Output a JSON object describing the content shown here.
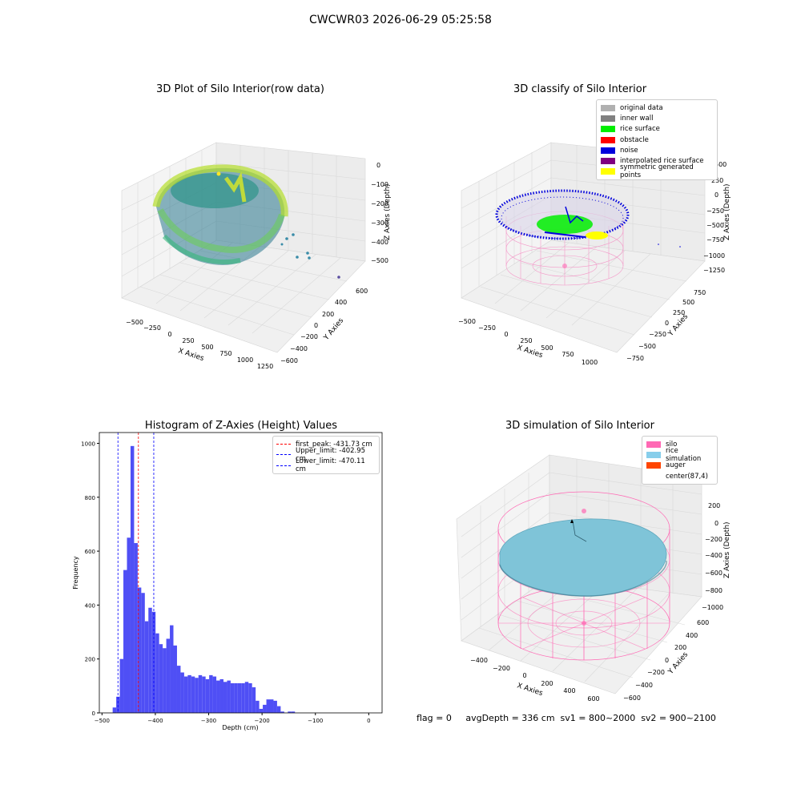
{
  "figure": {
    "suptitle": "CWCWR03 2026-06-29 05:25:58",
    "status_text": "flag = 0     avgDepth = 336 cm  sv1 = 800~2000  sv2 = 900~2100"
  },
  "panels": {
    "raw": {
      "title": "3D Plot of Silo Interior(row data)",
      "xlabel": "X Axies",
      "ylabel": "Y Axies",
      "zlabel": "Z Axies (Depth)",
      "xticks": [
        "−500",
        "−250",
        "0",
        "250",
        "500",
        "750",
        "1000",
        "1250"
      ],
      "yticks": [
        "600",
        "400",
        "200",
        "0",
        "−200",
        "−400",
        "−600"
      ],
      "zticks": [
        "0",
        "−100",
        "−200",
        "−300",
        "−400",
        "−500"
      ]
    },
    "classify": {
      "title": "3D classify of Silo Interior",
      "xlabel": "X Axies",
      "ylabel": "Y Axies",
      "zlabel": "Z Axies (Depth)",
      "xticks": [
        "−500",
        "−250",
        "0",
        "250",
        "500",
        "750",
        "1000"
      ],
      "yticks": [
        "750",
        "500",
        "250",
        "0",
        "−250",
        "−500",
        "−750"
      ],
      "zticks": [
        "500",
        "250",
        "0",
        "−250",
        "−500",
        "−750",
        "−1000",
        "−1250"
      ],
      "legend": [
        {
          "label": "original data",
          "color": "#b0b0b0"
        },
        {
          "label": "inner wall",
          "color": "#808080"
        },
        {
          "label": "rice surface",
          "color": "#00ee00"
        },
        {
          "label": "obstacle",
          "color": "#ff0000"
        },
        {
          "label": "noise",
          "color": "#0000dd"
        },
        {
          "label": "interpolated rice surface",
          "color": "#800080"
        },
        {
          "label": "symmetric generated points",
          "color": "#ffff00"
        }
      ]
    },
    "simulation": {
      "title": "3D simulation of Silo Interior",
      "xlabel": "X Axies",
      "ylabel": "Y Axies",
      "zlabel": "Z Axies (Depth)",
      "xticks": [
        "−400",
        "−200",
        "0",
        "200",
        "400",
        "600"
      ],
      "yticks": [
        "600",
        "400",
        "200",
        "0",
        "−200",
        "−400",
        "−600"
      ],
      "zticks": [
        "200",
        "0",
        "−200",
        "−400",
        "−600",
        "−800",
        "−1000"
      ],
      "legend": [
        {
          "label": "silo",
          "color": "#ff69b4"
        },
        {
          "label": "rice simulation",
          "color": "#87ceeb"
        },
        {
          "label": "auger",
          "color": "#ff4500"
        },
        {
          "label": "center(87,4)",
          "color": ""
        }
      ]
    }
  },
  "chart_data": [
    {
      "type": "bar",
      "title": "Histogram of Z-Axies (Height) Values",
      "xlabel": "Depth (cm)",
      "ylabel": "Frequency",
      "bar_color": "#4b4bf5",
      "bin_width": 6.7,
      "bin_start": -480,
      "values": [
        20,
        60,
        200,
        530,
        650,
        990,
        630,
        465,
        445,
        340,
        390,
        375,
        295,
        255,
        240,
        275,
        325,
        250,
        175,
        150,
        135,
        140,
        135,
        130,
        140,
        135,
        125,
        140,
        135,
        120,
        125,
        115,
        120,
        110,
        110,
        110,
        110,
        115,
        110,
        95,
        45,
        15,
        30,
        50,
        50,
        45,
        25,
        5,
        0,
        5,
        5,
        0,
        0
      ],
      "xlim": [
        -505,
        25
      ],
      "ylim": [
        0,
        1040
      ],
      "xticks": [
        -500,
        -400,
        -300,
        -200,
        -100,
        0
      ],
      "yticks": [
        0,
        200,
        400,
        600,
        800,
        1000
      ],
      "reference_lines": [
        {
          "name": "first_peak: -431.73 cm",
          "x": -431.73,
          "color": "#ff0000"
        },
        {
          "name": "Upper_limit: -402.95 cm",
          "x": -402.95,
          "color": "#0000ff"
        },
        {
          "name": "Lower_limit: -470.11 cm",
          "x": -470.11,
          "color": "#0000ff"
        }
      ],
      "legend_position": "top-right",
      "grid": false
    }
  ]
}
